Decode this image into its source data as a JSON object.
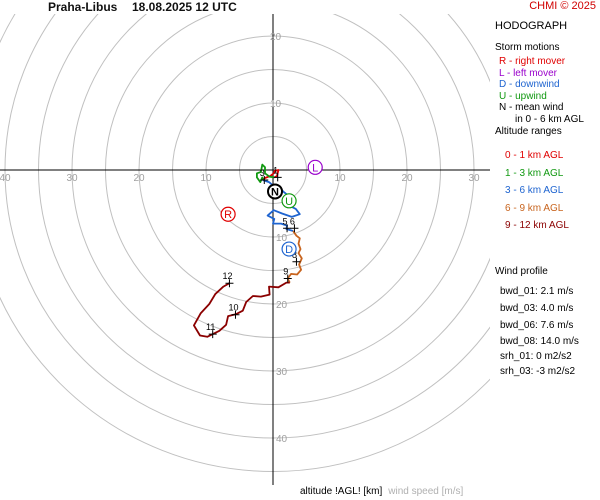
{
  "header": {
    "station": "Praha-Libus",
    "datetime": "18.08.2025 12 UTC",
    "copyright": "CHMI © 2025"
  },
  "panel": {
    "title": "HODOGRAPH",
    "storm_motions_heading": "Storm motions",
    "storm_motions": [
      {
        "text": "R - right mover",
        "color": "#e00000"
      },
      {
        "text": "L - left mover",
        "color": "#9900cc"
      },
      {
        "text": "D - downwind",
        "color": "#1e64d0"
      },
      {
        "text": "U - upwind",
        "color": "#119911"
      },
      {
        "text": "N - mean wind",
        "color": "#000000"
      },
      {
        "text": "in 0 - 6 km AGL",
        "color": "#000000"
      }
    ],
    "altitude_heading": "Altitude ranges",
    "altitude_ranges": [
      {
        "text": "0 - 1 km AGL",
        "color": "#e00000"
      },
      {
        "text": "1 - 3 km AGL",
        "color": "#119911"
      },
      {
        "text": "3 - 6 km AGL",
        "color": "#1e64d0"
      },
      {
        "text": "6 - 9 km AGL",
        "color": "#c8641e"
      },
      {
        "text": "9 - 12 km AGL",
        "color": "#8b0000"
      }
    ],
    "wind_profile_heading": "Wind profile",
    "wind_profile": [
      "bwd_01: 2.1 m/s",
      "bwd_03: 4.0 m/s",
      "bwd_06: 7.6 m/s",
      "bwd_08: 14.0 m/s"
    ],
    "helicity": [
      "srh_01: 0 m2/s2",
      "srh_03: -3 m2/s2"
    ]
  },
  "footer": {
    "label_1": "altitude !AGL! [km]",
    "label_2": "wind speed [m/s]"
  },
  "chart_data": {
    "type": "hodograph",
    "ring_spacing": 5,
    "max_radius": 45,
    "axis_labels": [
      "10",
      "20",
      "30",
      "40"
    ],
    "colors": {
      "grid": "#c0c0c0",
      "axis_labels": "#a0a0a0",
      "r": "#e00000",
      "l": "#9900cc",
      "d": "#1e64d0",
      "u": "#119911",
      "n": "#000000"
    },
    "storm_motions": [
      {
        "label": "R",
        "u": -6.7,
        "v": -6.6,
        "color": "#e00000"
      },
      {
        "label": "L",
        "u": 6.3,
        "v": 0.4,
        "color": "#9900cc"
      },
      {
        "label": "D",
        "u": 2.4,
        "v": -11.8,
        "color": "#1e64d0"
      },
      {
        "label": "U",
        "u": 2.4,
        "v": -4.6,
        "color": "#119911"
      },
      {
        "label": "N",
        "u": 0.3,
        "v": -3.2,
        "color": "#000000"
      }
    ],
    "altitude_markers": [
      {
        "label": "3",
        "u": -1.3,
        "v": -1.5
      },
      {
        "label": "1",
        "u": 0.7,
        "v": -1.1
      },
      {
        "label": "5",
        "u": 2.1,
        "v": -8.7
      },
      {
        "label": "6",
        "u": 3.2,
        "v": -8.7
      },
      {
        "label": "8",
        "u": 3.5,
        "v": -13.7
      },
      {
        "label": "9",
        "u": 2.2,
        "v": -16.2
      },
      {
        "label": "12",
        "u": -6.5,
        "v": -16.9
      },
      {
        "label": "10",
        "u": -5.6,
        "v": -21.6
      },
      {
        "label": "11",
        "u": -9.0,
        "v": -24.5
      }
    ],
    "series": [
      {
        "range": "0 - 1 km AGL",
        "color": "#e00000",
        "points": [
          [
            -1.5,
            -1.5
          ],
          [
            -1.2,
            -1.2
          ],
          [
            -0.4,
            -0.9
          ],
          [
            0.1,
            -0.5
          ],
          [
            0.3,
            -0.1
          ],
          [
            0.8,
            0.0
          ],
          [
            0.6,
            -0.9
          ],
          [
            0.2,
            -1.1
          ]
        ]
      },
      {
        "range": "1 - 3 km AGL",
        "color": "#119911",
        "points": [
          [
            0.2,
            -1.1
          ],
          [
            -0.5,
            -1.0
          ],
          [
            -1.2,
            -0.5
          ],
          [
            -1.2,
            0.4
          ],
          [
            -1.6,
            0.8
          ],
          [
            -1.8,
            -0.3
          ],
          [
            -2.4,
            -0.5
          ],
          [
            -2.4,
            -1.1
          ],
          [
            -1.9,
            -1.8
          ],
          [
            -1.6,
            -1.1
          ],
          [
            -1.5,
            -1.5
          ]
        ]
      },
      {
        "range": "3 - 6 km AGL",
        "color": "#1e64d0",
        "points": [
          [
            -1.5,
            -1.5
          ],
          [
            -0.6,
            -1.8
          ],
          [
            0.1,
            -2.4
          ],
          [
            0.8,
            -2.4
          ],
          [
            1.5,
            -3.2
          ],
          [
            2.0,
            -3.6
          ],
          [
            2.6,
            -5.4
          ],
          [
            3.4,
            -5.8
          ],
          [
            4.0,
            -6.6
          ],
          [
            2.8,
            -7.0
          ],
          [
            1.4,
            -6.5
          ],
          [
            0.1,
            -6.0
          ],
          [
            -0.8,
            -6.8
          ],
          [
            0.2,
            -7.3
          ],
          [
            0.0,
            -8.0
          ],
          [
            1.2,
            -8.0
          ],
          [
            2.1,
            -8.3
          ],
          [
            2.0,
            -8.8
          ],
          [
            3.0,
            -9.1
          ]
        ]
      },
      {
        "range": "6 - 9 km AGL",
        "color": "#c8641e",
        "points": [
          [
            3.0,
            -9.1
          ],
          [
            3.5,
            -9.8
          ],
          [
            4.0,
            -10.2
          ],
          [
            3.8,
            -11.0
          ],
          [
            4.1,
            -11.8
          ],
          [
            3.8,
            -12.4
          ],
          [
            4.3,
            -13.2
          ],
          [
            3.9,
            -14.1
          ],
          [
            4.2,
            -14.9
          ],
          [
            3.6,
            -15.6
          ],
          [
            2.7,
            -15.5
          ],
          [
            2.2,
            -16.2
          ],
          [
            2.5,
            -16.8
          ]
        ]
      },
      {
        "range": "9 - 12 km AGL",
        "color": "#8b0000",
        "points": [
          [
            2.5,
            -16.8
          ],
          [
            2.0,
            -16.8
          ],
          [
            0.8,
            -17.5
          ],
          [
            -0.6,
            -17.4
          ],
          [
            -0.5,
            -18.6
          ],
          [
            -1.8,
            -18.9
          ],
          [
            -3.0,
            -18.8
          ],
          [
            -4.0,
            -19.7
          ],
          [
            -4.5,
            -21.0
          ],
          [
            -5.5,
            -21.5
          ],
          [
            -6.7,
            -21.8
          ],
          [
            -7.0,
            -23.1
          ],
          [
            -8.0,
            -24.0
          ],
          [
            -9.8,
            -24.9
          ],
          [
            -10.9,
            -24.7
          ],
          [
            -11.8,
            -23.2
          ],
          [
            -10.8,
            -21.4
          ],
          [
            -9.5,
            -20.0
          ],
          [
            -8.6,
            -18.5
          ],
          [
            -7.4,
            -17.4
          ],
          [
            -6.5,
            -16.9
          ]
        ]
      }
    ]
  }
}
